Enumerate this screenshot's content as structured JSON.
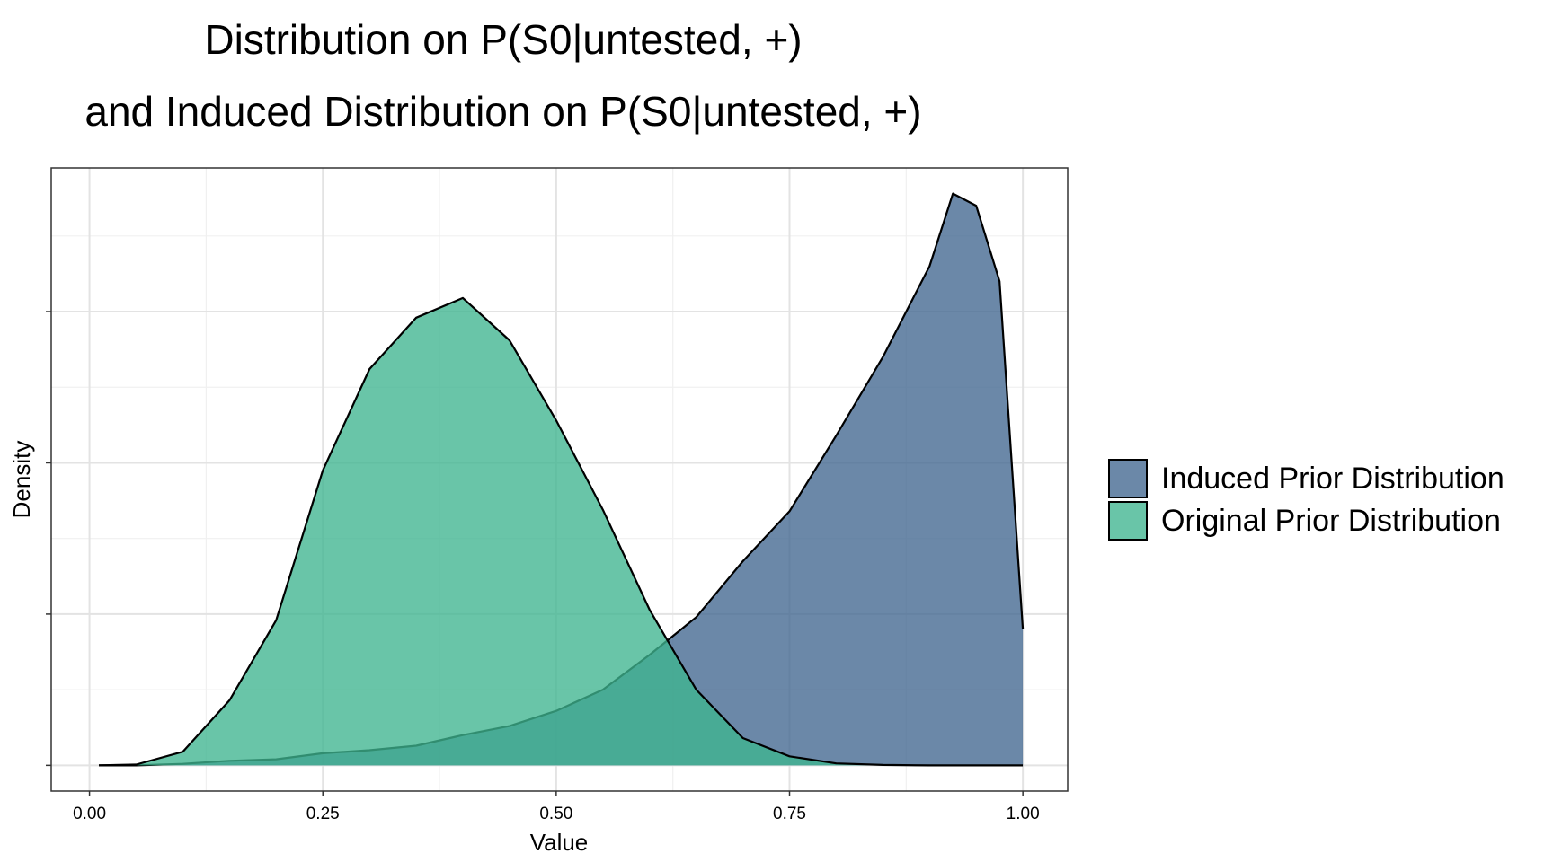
{
  "chart_data": {
    "type": "area",
    "title": "Distribution on P(S0|untested, +)",
    "subtitle": "and Induced Distribution on P(S0|untested, +)",
    "x_label": "Value",
    "y_label": "Density",
    "x": [
      0.01,
      0.05,
      0.1,
      0.15,
      0.2,
      0.25,
      0.3,
      0.35,
      0.4,
      0.45,
      0.5,
      0.55,
      0.6,
      0.65,
      0.7,
      0.75,
      0.8,
      0.85,
      0.9,
      0.925,
      0.95,
      0.975,
      1.0
    ],
    "series": [
      {
        "name": "Induced Prior Distribution",
        "color": "#41668f",
        "values": [
          0,
          0,
          0.01,
          0.03,
          0.04,
          0.08,
          0.1,
          0.13,
          0.2,
          0.26,
          0.36,
          0.5,
          0.73,
          0.98,
          1.35,
          1.68,
          2.18,
          2.7,
          3.3,
          3.78,
          3.7,
          3.2,
          0.9
        ]
      },
      {
        "name": "Original Prior Distribution",
        "color": "#3fb590",
        "values": [
          0,
          0.005,
          0.09,
          0.43,
          0.96,
          1.95,
          2.62,
          2.96,
          3.09,
          2.81,
          2.28,
          1.69,
          1.03,
          0.5,
          0.18,
          0.06,
          0.013,
          0.003,
          0,
          0,
          0,
          0,
          0
        ]
      }
    ],
    "xlim": [
      -0.041,
      1.048
    ],
    "ylim": [
      -0.17,
      3.95
    ],
    "xticks": [
      {
        "value": 0,
        "label": "0.00"
      },
      {
        "value": 0.25,
        "label": "0.25"
      },
      {
        "value": 0.5,
        "label": "0.50"
      },
      {
        "value": 0.75,
        "label": "0.75"
      },
      {
        "value": 1,
        "label": "1.00"
      }
    ],
    "yticks": [
      0,
      1,
      2,
      3
    ],
    "grid": true,
    "legend": "right"
  }
}
